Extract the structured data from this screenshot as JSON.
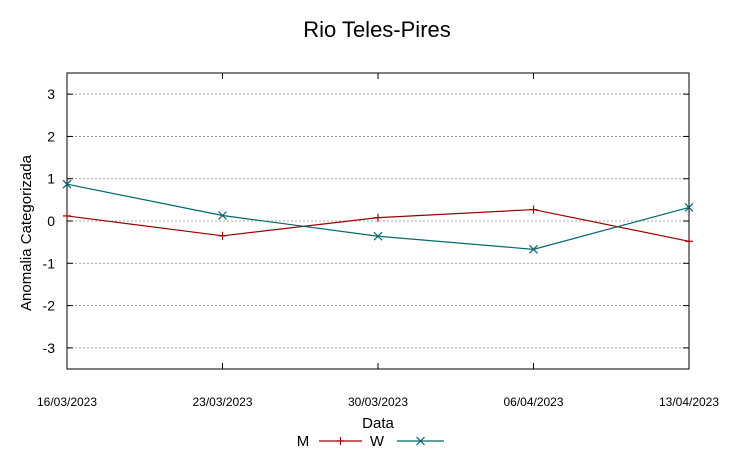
{
  "chart_data": {
    "type": "line",
    "title": "Rio Teles-Pires",
    "xlabel": "Data",
    "ylabel": "Anomalia Categorizada",
    "x": [
      "16/03/2023",
      "23/03/2023",
      "30/03/2023",
      "06/04/2023",
      "13/04/2023"
    ],
    "yticks": [
      "3",
      "2",
      "1",
      "0",
      "-1",
      "-2",
      "-3"
    ],
    "ylim": [
      -3.5,
      3.5
    ],
    "grid": true,
    "legend": "bottom-center",
    "series": [
      {
        "name": "M",
        "values": [
          0.12,
          -0.35,
          0.08,
          0.27,
          -0.48
        ],
        "color": "#a00000",
        "marker": "plus"
      },
      {
        "name": "W",
        "values": [
          0.87,
          0.13,
          -0.36,
          -0.67,
          0.32
        ],
        "color": "#00696b",
        "marker": "cross"
      }
    ]
  }
}
